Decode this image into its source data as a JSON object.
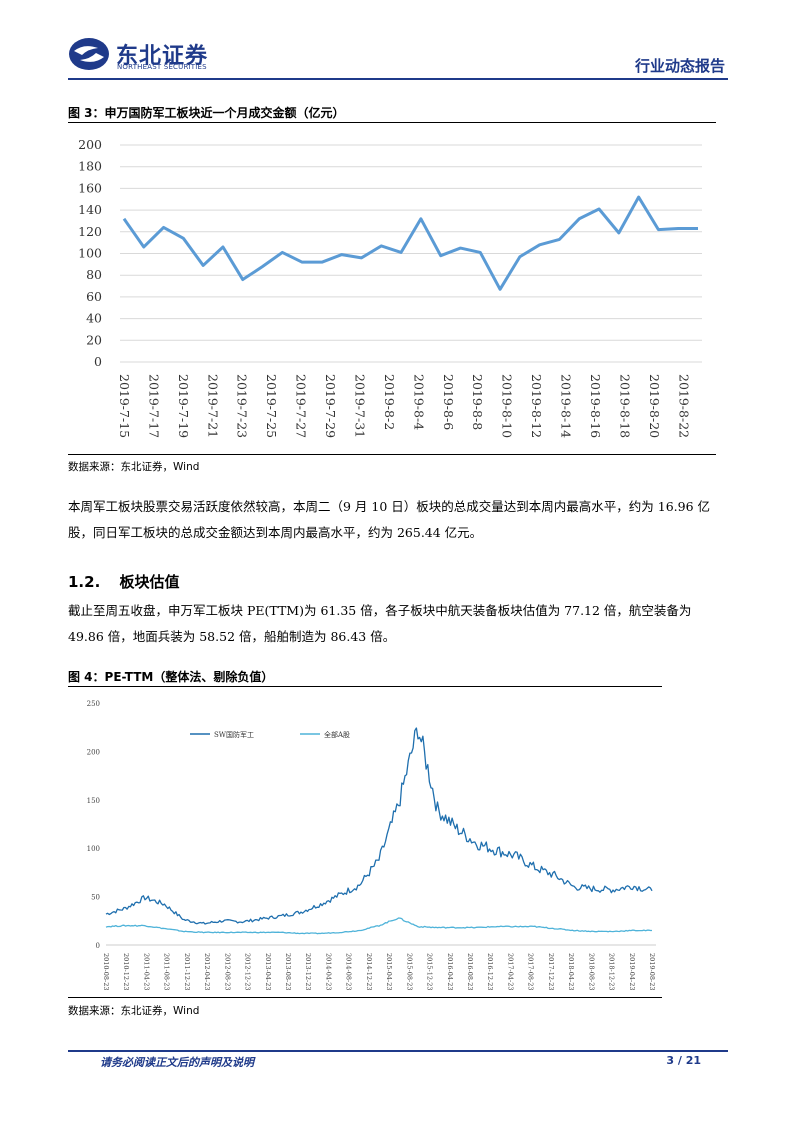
{
  "header": {
    "logo_cn": "东北证券",
    "logo_en": "NORTHEAST SECURITIES",
    "report_type": "行业动态报告"
  },
  "figure3": {
    "title": "图 3：申万国防军工板块近一个月成交金额（亿元）",
    "source": "数据来源：东北证券，Wind"
  },
  "paragraph1": "本周军工板块股票交易活跃度依然较高，本周二（9 月 10 日）板块的总成交量达到本周内最高水平，约为 16.96 亿股，同日军工板块的总成交金额达到本周内最高水平，约为 265.44 亿元。",
  "section": {
    "number": "1.2.",
    "title": "板块估值"
  },
  "paragraph2": "截止至周五收盘，申万军工板块 PE(TTM)为 61.35 倍，各子板块中航天装备板块估值为 77.12 倍，航空装备为 49.86 倍，地面兵装为 58.52 倍，船舶制造为 86.43 倍。",
  "figure4": {
    "title": "图 4：PE-TTM（整体法、剔除负值）",
    "source": "数据来源：东北证券，Wind"
  },
  "footer": {
    "disclaimer": "请务必阅读正文后的声明及说明",
    "page": "3 / 21"
  },
  "chart_data": [
    {
      "type": "line",
      "title": "",
      "ylim": [
        0,
        200
      ],
      "yticks": [
        0,
        20,
        40,
        60,
        80,
        100,
        120,
        140,
        160,
        180,
        200
      ],
      "grid": true,
      "color": "#5b9bd5",
      "x": [
        "2019-7-15",
        "2019-7-16",
        "2019-7-17",
        "2019-7-18",
        "2019-7-19",
        "2019-7-22",
        "2019-7-23",
        "2019-7-24",
        "2019-7-25",
        "2019-7-26",
        "2019-7-29",
        "2019-7-30",
        "2019-7-31",
        "2019-8-1",
        "2019-8-2",
        "2019-8-5",
        "2019-8-6",
        "2019-8-7",
        "2019-8-8",
        "2019-8-9",
        "2019-8-12",
        "2019-8-13",
        "2019-8-14",
        "2019-8-15",
        "2019-8-16",
        "2019-8-19",
        "2019-8-20",
        "2019-8-21",
        "2019-8-22",
        "2019-8-23"
      ],
      "tick_labels": [
        "2019-7-15",
        "2019-7-17",
        "2019-7-19",
        "2019-7-21",
        "2019-7-23",
        "2019-7-25",
        "2019-7-27",
        "2019-7-29",
        "2019-7-31",
        "2019-8-2",
        "2019-8-4",
        "2019-8-6",
        "2019-8-8",
        "2019-8-10",
        "2019-8-12",
        "2019-8-14",
        "2019-8-16",
        "2019-8-18",
        "2019-8-20",
        "2019-8-22"
      ],
      "series": [
        {
          "values": [
            132,
            106,
            124,
            114,
            89,
            106,
            76,
            88,
            101,
            92,
            92,
            99,
            96,
            107,
            101,
            132,
            98,
            105,
            101,
            67,
            97,
            108,
            113,
            132,
            141,
            119,
            152,
            122,
            123,
            123
          ]
        }
      ]
    },
    {
      "type": "line",
      "title": "",
      "ylim": [
        0,
        250
      ],
      "yticks": [
        0,
        50,
        100,
        150,
        200,
        250
      ],
      "grid": false,
      "x_tick_labels": [
        "2010-08-23",
        "2010-12-23",
        "2011-04-23",
        "2011-08-23",
        "2011-12-23",
        "2012-04-23",
        "2012-08-23",
        "2012-12-23",
        "2013-04-23",
        "2013-08-23",
        "2013-12-23",
        "2014-04-23",
        "2014-08-23",
        "2014-12-23",
        "2015-04-23",
        "2015-08-23",
        "2015-12-23",
        "2016-04-23",
        "2016-08-23",
        "2016-12-23",
        "2017-04-23",
        "2017-08-23",
        "2017-12-23",
        "2018-04-23",
        "2018-08-23",
        "2018-12-23",
        "2019-04-23",
        "2019-08-23"
      ],
      "legend_position": "top",
      "series": [
        {
          "name": "SW国防军工",
          "color": "#1f6fae",
          "values": [
            32,
            38,
            49,
            42,
            26,
            22,
            25,
            24,
            27,
            30,
            34,
            42,
            52,
            62,
            88,
            145,
            225,
            140,
            120,
            105,
            98,
            92,
            80,
            72,
            60,
            58,
            57,
            61,
            56
          ]
        },
        {
          "name": "全部A股",
          "color": "#4fb3d9",
          "values": [
            19,
            20,
            20,
            17,
            14,
            13,
            13,
            13,
            13,
            13,
            12,
            12,
            13,
            15,
            20,
            28,
            19,
            18,
            18,
            18,
            19,
            19,
            19,
            17,
            15,
            14,
            14,
            15,
            15
          ]
        }
      ]
    }
  ]
}
